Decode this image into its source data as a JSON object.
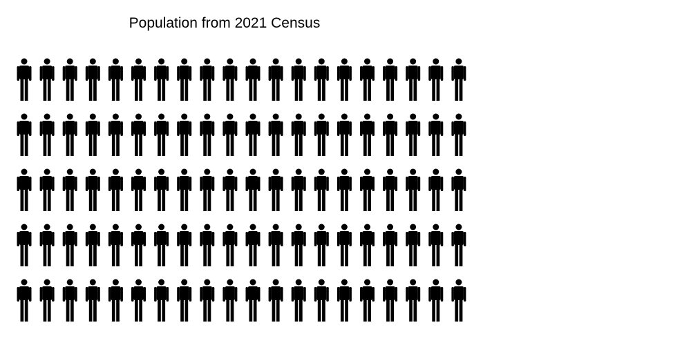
{
  "chart_data": {
    "type": "pictogram",
    "title": "Population from 2021 Census",
    "icon": "person-icon",
    "icon_color": "#000000",
    "rows": 5,
    "columns": 20,
    "count": 100
  }
}
